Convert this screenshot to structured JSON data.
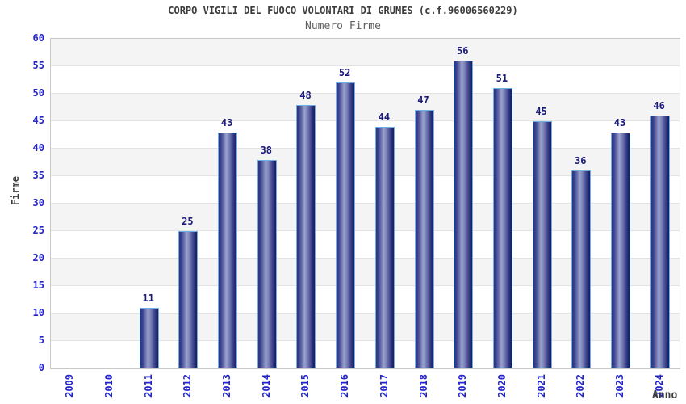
{
  "header": {
    "title": "CORPO VIGILI DEL FUOCO VOLONTARI DI GRUMES (c.f.96006560229)",
    "subtitle": "Numero Firme"
  },
  "chart_data": {
    "type": "bar",
    "title": "CORPO VIGILI DEL FUOCO VOLONTARI DI GRUMES (c.f.96006560229)",
    "subtitle": "Numero Firme",
    "xlabel": "Anno",
    "ylabel": "Firme",
    "categories": [
      "2009",
      "2010",
      "2011",
      "2012",
      "2013",
      "2014",
      "2015",
      "2016",
      "2017",
      "2018",
      "2019",
      "2020",
      "2021",
      "2022",
      "2023",
      "2024"
    ],
    "values": [
      0,
      0,
      11,
      25,
      43,
      38,
      48,
      52,
      44,
      47,
      56,
      51,
      45,
      36,
      43,
      46
    ],
    "ylim": [
      0,
      60
    ],
    "ytick_step": 5,
    "grid": true,
    "legend_shown": false,
    "bars_hidden_for_zero": true,
    "value_labels": true
  },
  "style": {
    "tick_label_color": "#2424cc",
    "value_label_color": "#1a1a7a",
    "title_color": "#3c3c3c",
    "subtitle_color": "#606060",
    "band_color": "#f4f4f4",
    "gridline_color": "#e3e3e3",
    "bar_border_color": "#6cb0e4",
    "bar_dark_color": "#252b74",
    "bar_light_color": "#9ba2cf",
    "plot_border_color": "#c9c9c9"
  }
}
